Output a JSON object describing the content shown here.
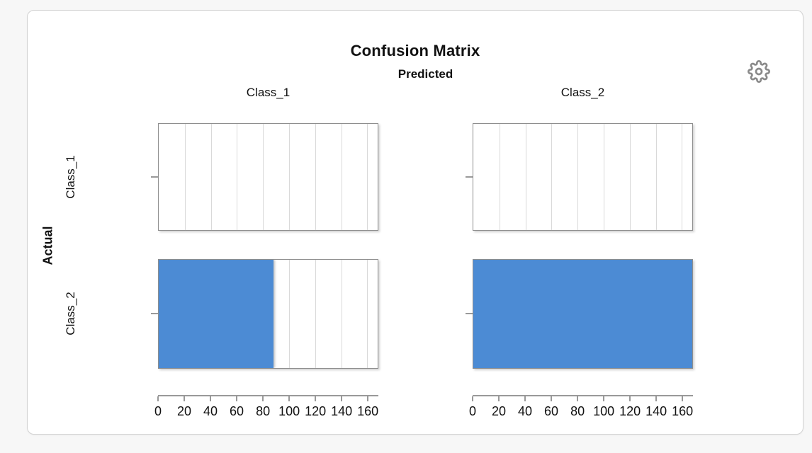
{
  "colors": {
    "page_background": "#f7f7f7",
    "card_background": "#ffffff",
    "bar_blue": "#4c8bd4",
    "panel_border": "#8e8e8e",
    "gridline": "#d9d9d9",
    "axis_gray": "#999999",
    "icon_gray": "#8a8a8a"
  },
  "icons": {
    "settings": "gear-icon"
  },
  "chart_data": {
    "type": "bar",
    "orientation": "horizontal",
    "title": "Confusion Matrix",
    "top_axis_title": "Predicted",
    "left_axis_title": "Actual",
    "predicted_classes": [
      "Class_1",
      "Class_2"
    ],
    "actual_classes": [
      "Class_1",
      "Class_2"
    ],
    "series": [
      {
        "actual": "Class_1",
        "values": [
          0,
          0
        ]
      },
      {
        "actual": "Class_2",
        "values": [
          88,
          168
        ]
      }
    ],
    "xlim": [
      0,
      168
    ],
    "xticks": [
      0,
      20,
      40,
      60,
      80,
      100,
      120,
      140,
      160
    ],
    "bar_color": "#4c8bd4",
    "grid": true,
    "legend": false
  }
}
